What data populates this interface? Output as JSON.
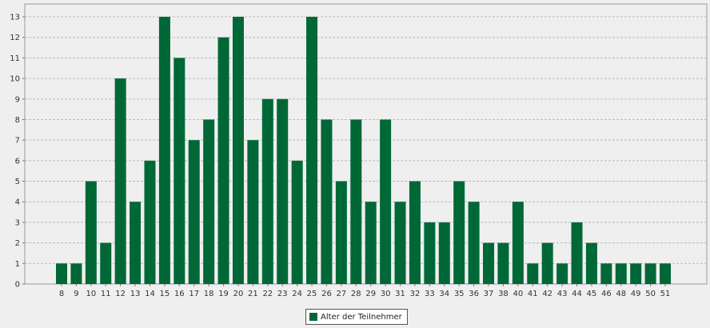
{
  "chart_data": {
    "type": "bar",
    "categories": [
      "8",
      "9",
      "10",
      "11",
      "12",
      "13",
      "14",
      "15",
      "16",
      "17",
      "18",
      "19",
      "20",
      "21",
      "22",
      "23",
      "24",
      "25",
      "26",
      "27",
      "28",
      "29",
      "30",
      "31",
      "32",
      "33",
      "34",
      "35",
      "36",
      "37",
      "38",
      "40",
      "41",
      "42",
      "43",
      "44",
      "45",
      "46",
      "48",
      "49",
      "50",
      "51"
    ],
    "series": [
      {
        "name": "Alter der Teilnehmer",
        "color": "#006837",
        "values": [
          1,
          1,
          5,
          2,
          10,
          4,
          6,
          13,
          11,
          7,
          8,
          12,
          13,
          7,
          9,
          9,
          6,
          13,
          8,
          5,
          8,
          4,
          8,
          4,
          5,
          3,
          3,
          5,
          4,
          2,
          2,
          4,
          1,
          2,
          1,
          3,
          2,
          1,
          1,
          1,
          1,
          1
        ]
      }
    ],
    "title": "",
    "xlabel": "",
    "ylabel": "",
    "ylim": [
      0,
      13
    ],
    "yticks": [
      0,
      1,
      2,
      3,
      4,
      5,
      6,
      7,
      8,
      9,
      10,
      11,
      12,
      13
    ],
    "grid": true,
    "legend_position": "bottom-center"
  }
}
